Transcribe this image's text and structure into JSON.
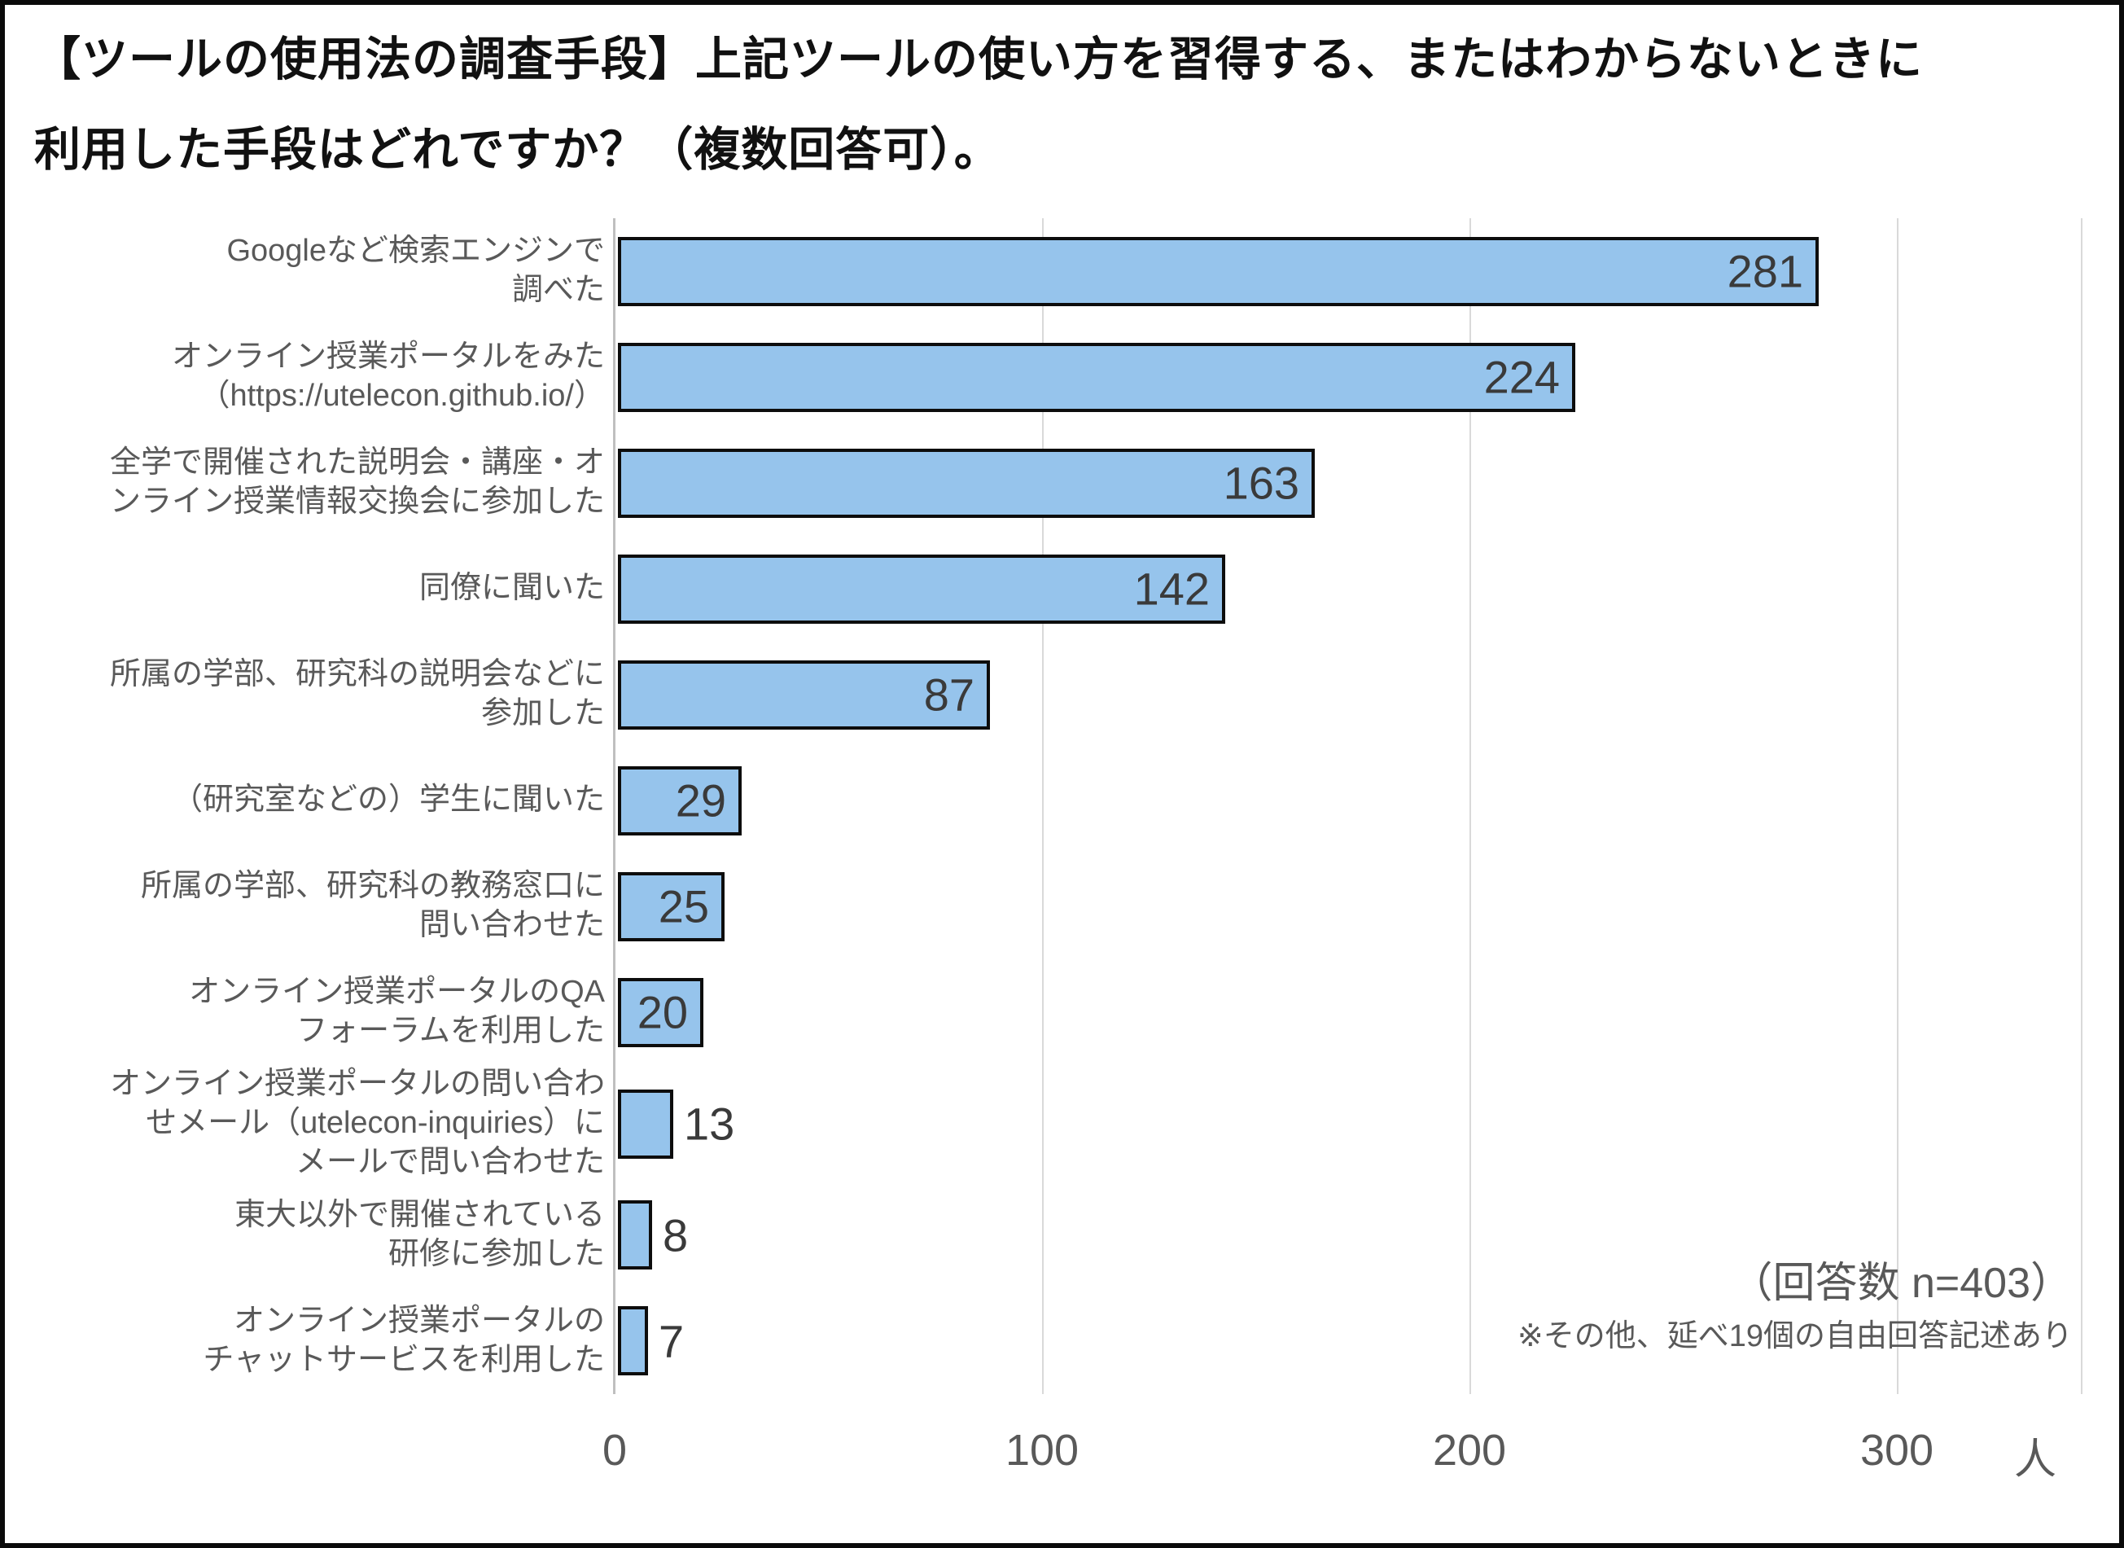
{
  "title": "【ツールの使用法の調査手段】上記ツールの使い方を習得する、またはわからないときに\n利用した手段はどれですか？（複数回答可）。",
  "chart_data": {
    "type": "bar",
    "orientation": "horizontal",
    "title": "【ツールの使用法の調査手段】上記ツールの使い方を習得する、またはわからないときに利用した手段はどれですか？（複数回答可）。",
    "categories": [
      "Googleなど検索エンジンで\n調べた",
      "オンライン授業ポータルをみた\n（https://utelecon.github.io/）",
      "全学で開催された説明会・講座・オ\nンライン授業情報交換会に参加した",
      "同僚に聞いた",
      "所属の学部、研究科の説明会などに\n参加した",
      "（研究室などの）学生に聞いた",
      "所属の学部、研究科の教務窓口に\n問い合わせた",
      "オンライン授業ポータルのQA\nフォーラムを利用した",
      "オンライン授業ポータルの問い合わ\nせメール（utelecon-inquiries）に\nメールで問い合わせた",
      "東大以外で開催されている\n研修に参加した",
      "オンライン授業ポータルの\nチャットサービスを利用した"
    ],
    "values": [
      281,
      224,
      163,
      142,
      87,
      29,
      25,
      20,
      13,
      8,
      7
    ],
    "value_label_inside": [
      true,
      true,
      true,
      true,
      true,
      true,
      true,
      true,
      false,
      false,
      false
    ],
    "x_ticks": [
      0,
      100,
      200,
      300
    ],
    "xlim": [
      0,
      343
    ],
    "unit": "人",
    "grid": true,
    "legend": "none",
    "annotations": {
      "sample_size": "（回答数 n=403）",
      "note": "※その他、延べ19個の自由回答記述あり"
    },
    "colors": {
      "bar_fill": "#96C4EC",
      "bar_border": "#0D0D0D",
      "gridline": "#D9D9D9",
      "axis_line": "#BFBFBF",
      "category_label": "#595959",
      "value_label": "#3A3A3A",
      "tick_label": "#595959",
      "title": "#111111"
    }
  }
}
